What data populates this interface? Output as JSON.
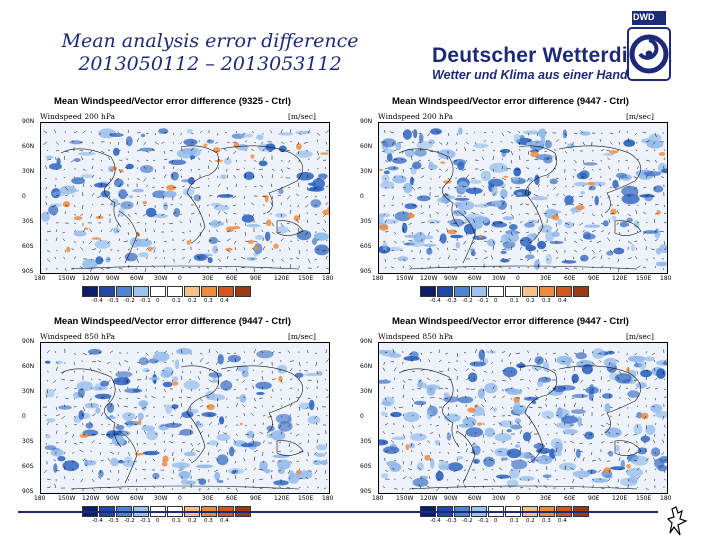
{
  "slide": {
    "title_line1": "Mean analysis error difference",
    "title_line2": "2013050112 – 2013053112"
  },
  "logo": {
    "name": "Deutscher Wetterdienst",
    "tagline": "Wetter und Klima aus einer Hand",
    "abbr": "DWD"
  },
  "panels": [
    {
      "title": "Mean Windspeed/Vector error difference (9325 - Ctrl)",
      "variable": "Windspeed 200 hPa",
      "unit": "[m/sec]",
      "lat_labels": [
        "90N",
        "60N",
        "30N",
        "0",
        "30S",
        "60S",
        "90S"
      ],
      "lon_labels": [
        "180",
        "150W",
        "120W",
        "90W",
        "60W",
        "30W",
        "0",
        "30E",
        "60E",
        "90E",
        "120E",
        "150E",
        "180"
      ],
      "colorbar_labels": [
        "-0.4",
        "-0.3",
        "-0.2",
        "-0.1",
        "0",
        "0.1",
        "0.2",
        "0.3",
        "0.4"
      ],
      "orange_density": 0.1,
      "blue_density": 0.35
    },
    {
      "title": "Mean Windspeed/Vector error difference (9447 - Ctrl)",
      "variable": "Windspeed 200 hPa",
      "unit": "[m/sec]",
      "lat_labels": [
        "90N",
        "60N",
        "30N",
        "0",
        "30S",
        "60S",
        "90S"
      ],
      "lon_labels": [
        "180",
        "150W",
        "120W",
        "90W",
        "60W",
        "30W",
        "0",
        "30E",
        "60E",
        "90E",
        "120E",
        "150E",
        "180"
      ],
      "colorbar_labels": [
        "-0.4",
        "-0.3",
        "-0.2",
        "-0.1",
        "0",
        "0.1",
        "0.2",
        "0.3",
        "0.4"
      ],
      "orange_density": 0.05,
      "blue_density": 0.6
    },
    {
      "title": "Mean Windspeed/Vector error difference (9447 - Ctrl)",
      "variable": "Windspeed 850 hPa",
      "unit": "[m/sec]",
      "lat_labels": [
        "90N",
        "60N",
        "30N",
        "0",
        "30S",
        "60S",
        "90S"
      ],
      "lon_labels": [
        "180",
        "150W",
        "120W",
        "90W",
        "60W",
        "30W",
        "0",
        "30E",
        "60E",
        "90E",
        "120E",
        "150E",
        "180"
      ],
      "colorbar_labels": [
        "-0.4",
        "-0.3",
        "-0.2",
        "-0.1",
        "0",
        "0.1",
        "0.2",
        "0.3",
        "0.4"
      ],
      "orange_density": 0.03,
      "blue_density": 0.45
    },
    {
      "title": "Mean Windspeed/Vector error difference (9447 - Ctrl)",
      "variable": "Windspeed 850 hPa",
      "unit": "[m/sec]",
      "lat_labels": [
        "90N",
        "60N",
        "30N",
        "0",
        "30S",
        "60S",
        "90S"
      ],
      "lon_labels": [
        "180",
        "150W",
        "120W",
        "90W",
        "60W",
        "30W",
        "0",
        "30E",
        "60E",
        "90E",
        "120E",
        "150E",
        "180"
      ],
      "colorbar_labels": [
        "-0.4",
        "-0.3",
        "-0.2",
        "-0.1",
        "0",
        "0.1",
        "0.2",
        "0.3",
        "0.4"
      ],
      "orange_density": 0.03,
      "blue_density": 0.55
    }
  ],
  "colorbar_colors": [
    "#0b1d6b",
    "#2248a8",
    "#4f83d4",
    "#9cc2ee",
    "#ffffff",
    "#ffffff",
    "#f6c28a",
    "#ee8a3a",
    "#d5561c",
    "#9c3a14"
  ],
  "colors": {
    "brand": "#1c2a78",
    "field_blue": "#2e64c0",
    "field_light": "#8fb8ea",
    "field_orange": "#ee8a3a"
  }
}
